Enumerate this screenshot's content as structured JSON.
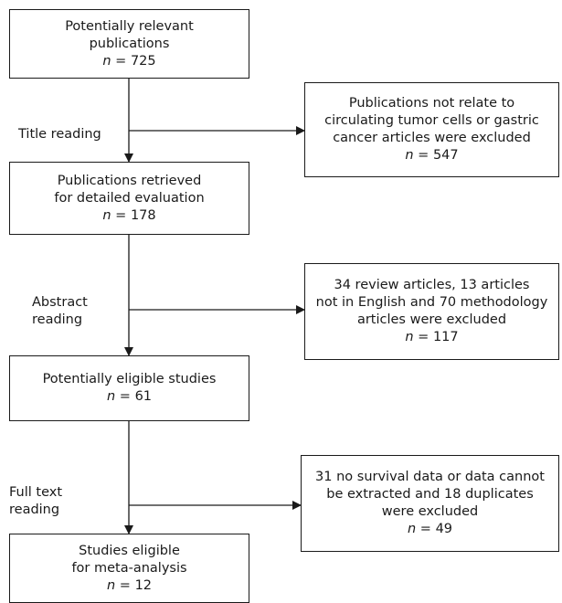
{
  "flow": {
    "main_boxes": [
      {
        "lines": [
          "Potentially relevant",
          "publications"
        ],
        "n": "725"
      },
      {
        "lines": [
          "Publications retrieved",
          "for detailed evaluation"
        ],
        "n": "178"
      },
      {
        "lines": [
          "Potentially eligible studies"
        ],
        "n": "61"
      },
      {
        "lines": [
          "Studies eligible",
          "for meta-analysis"
        ],
        "n": "12"
      }
    ],
    "excluded_boxes": [
      {
        "lines": [
          "Publications not relate to",
          "circulating tumor cells or gastric",
          "cancer articles were excluded"
        ],
        "n": "547"
      },
      {
        "lines": [
          "34 review articles, 13 articles",
          "not in English and 70 methodology",
          "articles were excluded"
        ],
        "n": "117"
      },
      {
        "lines": [
          "31 no survival data or data cannot",
          "be extracted and 18 duplicates",
          "were excluded"
        ],
        "n": "49"
      }
    ],
    "step_labels": [
      {
        "lines": [
          "Title reading"
        ]
      },
      {
        "lines": [
          "Abstract",
          "reading"
        ]
      },
      {
        "lines": [
          "Full text",
          "reading"
        ]
      }
    ],
    "n_symbol": "n",
    "n_separator": " = "
  }
}
